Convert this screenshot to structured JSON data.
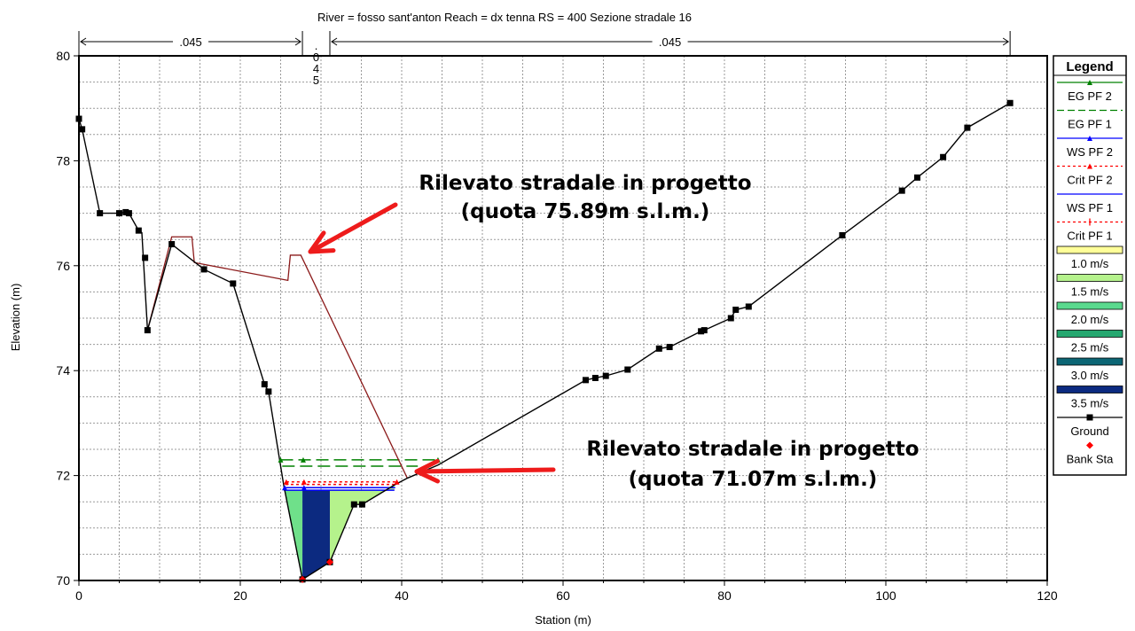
{
  "chart_data": {
    "type": "area",
    "title": "River = fosso sant'anton   Reach = dx tenna       RS = 400    Sezione stradale 16",
    "xlabel": "Station (m)",
    "ylabel": "Elevation (m)",
    "xlim": [
      0,
      120
    ],
    "ylim": [
      70,
      80
    ],
    "x_ticks": [
      "0",
      "20",
      "40",
      "60",
      "80",
      "100",
      "120"
    ],
    "y_ticks": [
      "70",
      "72",
      "74",
      "76",
      "78",
      "80"
    ],
    "grid": true,
    "legend_position": "right",
    "legend_title": "Legend",
    "legend": [
      {
        "label": "EG PF 2",
        "color": "#008000",
        "style": "solid",
        "marker": "triangle"
      },
      {
        "label": "EG PF 1",
        "color": "#008000",
        "style": "dash",
        "marker": "none"
      },
      {
        "label": "WS PF 2",
        "color": "#0000ff",
        "style": "solid",
        "marker": "triangle"
      },
      {
        "label": "Crit PF 2",
        "color": "#ff0000",
        "style": "dot",
        "marker": "triangle"
      },
      {
        "label": "WS PF 1",
        "color": "#0000ff",
        "style": "solid",
        "marker": "none"
      },
      {
        "label": "Crit PF 1",
        "color": "#ff0000",
        "style": "dot",
        "marker": "plus"
      },
      {
        "label": "1.0 m/s",
        "color": "#ffff99",
        "style": "box"
      },
      {
        "label": "1.5 m/s",
        "color": "#b5f28c",
        "style": "box"
      },
      {
        "label": "2.0 m/s",
        "color": "#5ad98e",
        "style": "box"
      },
      {
        "label": "2.5 m/s",
        "color": "#26a870",
        "style": "box"
      },
      {
        "label": "3.0 m/s",
        "color": "#0c6675",
        "style": "box"
      },
      {
        "label": "3.5 m/s",
        "color": "#0c2a80",
        "style": "box"
      },
      {
        "label": "Ground",
        "color": "#000000",
        "style": "solid",
        "marker": "square"
      },
      {
        "label": "Bank Sta",
        "color": "#ff0000",
        "style": "none",
        "marker": "diamond"
      }
    ],
    "mannings": [
      {
        "label": ".045",
        "from": 0,
        "to": 27.7
      },
      {
        "label": ".045",
        "from": 31.1,
        "to": 115.4
      }
    ],
    "mannings_mid_chars": [
      ".",
      "0",
      "4",
      "5"
    ],
    "ground": [
      [
        0,
        78.8
      ],
      [
        0.4,
        78.6
      ],
      [
        2.6,
        77
      ],
      [
        5,
        77
      ],
      [
        5.8,
        77.02
      ],
      [
        6.2,
        77
      ],
      [
        7.4,
        76.67
      ],
      [
        7.8,
        76.63
      ],
      [
        8.5,
        74.77
      ],
      [
        11.5,
        76.41
      ],
      [
        15.5,
        75.93
      ],
      [
        19.1,
        75.66
      ],
      [
        23,
        73.74
      ],
      [
        23.5,
        73.6
      ],
      [
        25.4,
        71.8
      ],
      [
        27.7,
        70.02
      ],
      [
        31.1,
        70.35
      ],
      [
        34.1,
        71.45
      ],
      [
        35.1,
        71.45
      ],
      [
        39.1,
        71.82
      ],
      [
        40.7,
        71.95
      ],
      [
        44.5,
        72.2
      ],
      [
        62.8,
        73.82
      ],
      [
        64,
        73.86
      ],
      [
        65.3,
        73.9
      ],
      [
        68,
        74.02
      ],
      [
        71.9,
        74.42
      ],
      [
        73.2,
        74.45
      ],
      [
        77.1,
        74.75
      ],
      [
        77.5,
        74.77
      ],
      [
        80.8,
        75
      ],
      [
        81.4,
        75.16
      ],
      [
        83,
        75.22
      ],
      [
        94.6,
        76.58
      ],
      [
        102,
        77.43
      ],
      [
        103.9,
        77.68
      ],
      [
        107.1,
        78.07
      ],
      [
        110.1,
        78.63
      ],
      [
        115.4,
        79.1
      ]
    ],
    "ground_markers": [
      [
        0,
        78.8
      ],
      [
        0.4,
        78.6
      ],
      [
        2.6,
        77
      ],
      [
        5,
        77
      ],
      [
        5.8,
        77.02
      ],
      [
        6.2,
        77
      ],
      [
        7.4,
        76.67
      ],
      [
        8.2,
        76.15
      ],
      [
        8.5,
        74.77
      ],
      [
        11.5,
        76.41
      ],
      [
        15.5,
        75.93
      ],
      [
        19.1,
        75.66
      ],
      [
        23,
        73.74
      ],
      [
        23.5,
        73.6
      ],
      [
        27.7,
        70.02
      ],
      [
        31.1,
        70.35
      ],
      [
        34.1,
        71.45
      ],
      [
        35.1,
        71.45
      ],
      [
        62.8,
        73.82
      ],
      [
        64,
        73.86
      ],
      [
        65.3,
        73.9
      ],
      [
        68,
        74.02
      ],
      [
        71.9,
        74.42
      ],
      [
        73.2,
        74.45
      ],
      [
        77.1,
        74.75
      ],
      [
        77.5,
        74.77
      ],
      [
        80.8,
        75
      ],
      [
        81.4,
        75.16
      ],
      [
        83,
        75.22
      ],
      [
        94.6,
        76.58
      ],
      [
        102,
        77.43
      ],
      [
        103.9,
        77.68
      ],
      [
        107.1,
        78.07
      ],
      [
        110.1,
        78.63
      ],
      [
        115.4,
        79.1
      ]
    ],
    "bank_stations": [
      [
        27.7,
        70.02
      ],
      [
        31.1,
        70.35
      ]
    ],
    "project_embankment": [
      [
        8.5,
        74.77
      ],
      [
        11.5,
        76.55
      ],
      [
        14,
        76.55
      ],
      [
        14.3,
        76.06
      ],
      [
        25.9,
        75.72
      ],
      [
        26.2,
        76.2
      ],
      [
        27.5,
        76.2
      ],
      [
        40.7,
        71.95
      ]
    ],
    "velocity_fill": [
      {
        "x": [
          25.4,
          27.7
        ],
        "color": "#6fe08a"
      },
      {
        "x": [
          27.7,
          31.1
        ],
        "color": "#0c2a80"
      },
      {
        "x": [
          31.1,
          39.1
        ],
        "color": "#b5f28c"
      }
    ],
    "ws_elev": 71.72,
    "ws_pf1": {
      "x": [
        25.4,
        39.1
      ],
      "y": 71.72,
      "color": "#0000ff"
    },
    "ws_pf2": {
      "x": [
        25.5,
        39.2
      ],
      "y": 71.77,
      "color": "#0000ff"
    },
    "crit_pf1": {
      "x": [
        25.6,
        39.3
      ],
      "y": 71.83,
      "color": "#ff0000"
    },
    "crit_pf2": {
      "x": [
        25.7,
        39.4
      ],
      "y": 71.88,
      "color": "#ff0000"
    },
    "eg_pf2": {
      "x": [
        25,
        44.5
      ],
      "y": 72.3,
      "color": "#008000"
    },
    "eg_pf1": {
      "x": [
        25.2,
        42
      ],
      "y": 72.18,
      "color": "#008000"
    }
  },
  "annotations": [
    {
      "line1": "Rilevato stradale in progetto",
      "line2": "(quota 75.89m s.l.m.)"
    },
    {
      "line1": "Rilevato stradale in progetto",
      "line2": "(quota 71.07m s.l.m.)"
    }
  ],
  "colors": {
    "arrow": "#ee1b1b",
    "embankment": "#8b1a1a",
    "ground": "#000000"
  }
}
